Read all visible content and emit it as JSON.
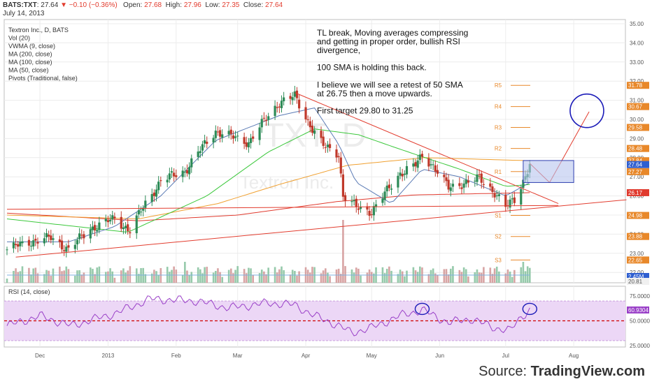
{
  "header": {
    "symbol": "BATS:TXT",
    "last": "27.64",
    "change_arrow": "▼",
    "change": "−0.10 (−0.36%)",
    "open_label": "Open:",
    "open": "27.68",
    "high_label": "High:",
    "high": "27.96",
    "low_label": "Low:",
    "low": "27.35",
    "close_label": "Close:",
    "close": "27.64",
    "date": "July 14, 2013"
  },
  "legend": {
    "items": [
      "Textron Inc., D, BATS",
      "Vol (20)",
      "VWMA (9, close)",
      "MA (200, close)",
      "MA (100, close)",
      "MA (50, close)",
      "Pivots (Traditional, false)"
    ]
  },
  "watermark": {
    "symbol": "TXT, D",
    "name": "Textron Inc."
  },
  "annotation": {
    "lines": [
      "TL break, Moving averages compressing",
      "and getting in proper order, bullish RSI",
      "divergence,",
      "",
      "100 SMA is holding this back.",
      "",
      "I believe we will see a retest of 50 SMA",
      "at 26.75 then a move upwards.",
      "",
      "First target 29.80 to 31.25"
    ]
  },
  "source": {
    "prefix": "Source: ",
    "brand": "TradingView.com"
  },
  "colors": {
    "up": "#2e8b57",
    "down": "#c0392b",
    "ma200": "#e03a2e",
    "ma100": "#f0a030",
    "ma50": "#3cc83c",
    "vwma": "#5b7bb5",
    "pivot": "#e8882a",
    "rsi": "#9a40c8",
    "rsi_band": "#ecd7f6",
    "trend": "#e23c2e",
    "box": "#b8c4ee",
    "circle": "#1a1ab8",
    "sidebar_orange": "#e8882a",
    "sidebar_red": "#e03a2e",
    "sidebar_green": "#3cc83c",
    "sidebar_blue": "#2f5fd0"
  },
  "chart_data": [
    {
      "type": "candlestick",
      "title": "Textron Inc., D, BATS",
      "x_ticks": [
        "Dec",
        "2013",
        "Feb",
        "Mar",
        "Apr",
        "May",
        "Jun",
        "Jul",
        "Aug"
      ],
      "y_ticks": [
        "35.00",
        "34.00",
        "33.00",
        "32.00",
        "31.00",
        "30.00",
        "29.00",
        "28.00",
        "27.00",
        "26.00",
        "25.00",
        "24.00",
        "23.00",
        "22.00"
      ],
      "ylim": [
        21.5,
        35.2
      ],
      "price_series": {
        "name": "Textron Inc.",
        "x_start": "2012-11-16",
        "close_anchors": [
          [
            "2012-11-16",
            23.2
          ],
          [
            "2012-11-26",
            23.6
          ],
          [
            "2012-12-06",
            23.8
          ],
          [
            "2012-12-14",
            23.2
          ],
          [
            "2012-12-24",
            24.3
          ],
          [
            "2013-01-04",
            24.8
          ],
          [
            "2013-01-11",
            24.2
          ],
          [
            "2013-01-18",
            25.6
          ],
          [
            "2013-01-25",
            26.8
          ],
          [
            "2013-02-05",
            27.3
          ],
          [
            "2013-02-12",
            28.4
          ],
          [
            "2013-02-19",
            29.4
          ],
          [
            "2013-02-26",
            29.1
          ],
          [
            "2013-03-06",
            28.8
          ],
          [
            "2013-03-13",
            29.9
          ],
          [
            "2013-03-20",
            30.9
          ],
          [
            "2013-03-27",
            31.2
          ],
          [
            "2013-04-02",
            29.9
          ],
          [
            "2013-04-09",
            28.6
          ],
          [
            "2013-04-16",
            28.2
          ],
          [
            "2013-04-18",
            26.0
          ],
          [
            "2013-04-24",
            25.4
          ],
          [
            "2013-05-01",
            25.2
          ],
          [
            "2013-05-07",
            26.1
          ],
          [
            "2013-05-14",
            27.2
          ],
          [
            "2013-05-21",
            27.6
          ],
          [
            "2013-05-24",
            28.1
          ],
          [
            "2013-05-29",
            27.6
          ],
          [
            "2013-06-05",
            26.4
          ],
          [
            "2013-06-12",
            26.7
          ],
          [
            "2013-06-19",
            26.9
          ],
          [
            "2013-06-26",
            26.2
          ],
          [
            "2013-07-01",
            25.4
          ],
          [
            "2013-07-05",
            25.8
          ],
          [
            "2013-07-09",
            26.8
          ],
          [
            "2013-07-12",
            27.64
          ]
        ]
      },
      "pivots": {
        "R5": 31.78,
        "R4": 30.67,
        "R3": 29.58,
        "R2": 28.48,
        "R1": 27.27,
        "S1": 24.98,
        "S2": 23.88,
        "S3": 22.65
      },
      "price_axis_labels": [
        {
          "text": "31.78",
          "series": "pivot"
        },
        {
          "text": "30.67",
          "series": "pivot"
        },
        {
          "text": "29.58",
          "series": "pivot"
        },
        {
          "text": "28.48",
          "series": "pivot"
        },
        {
          "text": "27.84",
          "series": "ma100"
        },
        {
          "text": "27.27",
          "series": "pivot"
        },
        {
          "text": "27.64",
          "series": "price"
        },
        {
          "text": "26.17",
          "series": "ma200"
        },
        {
          "text": "24.98",
          "series": "pivot"
        },
        {
          "text": "23.88",
          "series": "pivot"
        },
        {
          "text": "22.65",
          "series": "pivot"
        }
      ],
      "moving_averages": [
        {
          "name": "MA (200, close)",
          "anchors": [
            [
              "2012-11-16",
              25.1
            ],
            [
              "2013-01-15",
              24.7
            ],
            [
              "2013-03-01",
              25.0
            ],
            [
              "2013-04-15",
              25.7
            ],
            [
              "2013-05-20",
              26.05
            ],
            [
              "2013-07-12",
              26.17
            ]
          ]
        },
        {
          "name": "MA (100, close)",
          "anchors": [
            [
              "2012-11-16",
              25.0
            ],
            [
              "2013-01-15",
              24.8
            ],
            [
              "2013-02-20",
              25.6
            ],
            [
              "2013-03-20",
              26.6
            ],
            [
              "2013-04-20",
              27.6
            ],
            [
              "2013-05-25",
              28.0
            ],
            [
              "2013-07-12",
              27.84
            ]
          ]
        },
        {
          "name": "MA (50, close)",
          "anchors": [
            [
              "2012-11-16",
              24.8
            ],
            [
              "2013-01-10",
              24.1
            ],
            [
              "2013-02-15",
              26.0
            ],
            [
              "2013-03-15",
              28.3
            ],
            [
              "2013-04-05",
              29.5
            ],
            [
              "2013-04-25",
              29.2
            ],
            [
              "2013-05-15",
              28.4
            ],
            [
              "2013-06-10",
              27.4
            ],
            [
              "2013-07-01",
              26.5
            ],
            [
              "2013-07-12",
              26.6
            ]
          ]
        },
        {
          "name": "VWMA (9, close)",
          "anchors": [
            [
              "2012-11-16",
              23.6
            ],
            [
              "2012-12-14",
              23.6
            ],
            [
              "2013-01-04",
              24.4
            ],
            [
              "2013-01-25",
              26.0
            ],
            [
              "2013-02-19",
              28.9
            ],
            [
              "2013-03-20",
              30.2
            ],
            [
              "2013-04-05",
              30.6
            ],
            [
              "2013-04-16",
              28.7
            ],
            [
              "2013-04-24",
              26.7
            ],
            [
              "2013-05-10",
              25.6
            ],
            [
              "2013-05-24",
              27.4
            ],
            [
              "2013-06-10",
              27.0
            ],
            [
              "2013-07-01",
              26.0
            ],
            [
              "2013-07-12",
              26.7
            ]
          ]
        }
      ],
      "trendlines": [
        {
          "from": [
            "2012-11-20",
            22.8
          ],
          "to": [
            "2013-08-25",
            25.8
          ]
        },
        {
          "from": [
            "2012-11-16",
            25.3
          ],
          "to": [
            "2013-07-25",
            25.5
          ]
        },
        {
          "from": [
            "2013-03-27",
            31.4
          ],
          "to": [
            "2013-07-25",
            25.6
          ]
        },
        {
          "from": [
            "2013-07-12",
            27.7
          ],
          "to": [
            "2013-07-21",
            26.7
          ]
        },
        {
          "from": [
            "2013-07-21",
            26.7
          ],
          "to": [
            "2013-08-08",
            30.4
          ]
        }
      ],
      "target_box": {
        "x0": "2013-07-09",
        "x1": "2013-08-01",
        "y0": 26.7,
        "y1": 27.85
      },
      "target_circle": {
        "x": "2013-08-07",
        "y": 30.45
      }
    },
    {
      "type": "bar",
      "title": "Vol (20)",
      "price_axis_labels": [
        "2.45M",
        "20.81"
      ],
      "note": "volume bars relative to chart panel"
    },
    {
      "type": "line",
      "title": "RSI (14, close)",
      "y_ticks": [
        "75.0000",
        "50.0000",
        "25.0000"
      ],
      "ylim": [
        15,
        85
      ],
      "last_value": "60.9304",
      "band": [
        30,
        70
      ],
      "midline": 50,
      "anchors": [
        [
          "2012-11-16",
          45
        ],
        [
          "2012-12-01",
          55
        ],
        [
          "2012-12-15",
          45
        ],
        [
          "2013-01-05",
          58
        ],
        [
          "2013-01-20",
          72
        ],
        [
          "2013-02-10",
          70
        ],
        [
          "2013-02-25",
          63
        ],
        [
          "2013-03-15",
          68
        ],
        [
          "2013-03-27",
          66
        ],
        [
          "2013-04-05",
          55
        ],
        [
          "2013-04-15",
          46
        ],
        [
          "2013-04-22",
          38
        ],
        [
          "2013-05-01",
          43
        ],
        [
          "2013-05-15",
          56
        ],
        [
          "2013-05-24",
          61
        ],
        [
          "2013-06-05",
          48
        ],
        [
          "2013-06-15",
          52
        ],
        [
          "2013-06-26",
          43
        ],
        [
          "2013-07-03",
          40
        ],
        [
          "2013-07-08",
          54
        ],
        [
          "2013-07-12",
          60.93
        ]
      ],
      "circles": [
        {
          "x": "2013-05-24",
          "y": 62
        },
        {
          "x": "2013-07-12",
          "y": 62
        }
      ]
    }
  ]
}
